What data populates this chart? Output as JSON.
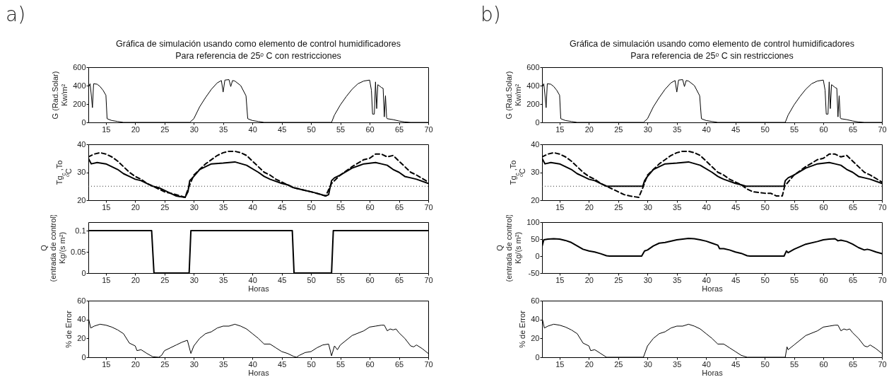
{
  "chart_data": [
    {
      "type": "line",
      "annotations": [
        "a)"
      ],
      "title": "Gráfica de simulación usando como elemento de control humidificadores",
      "subtitle": "Para referencia de 25ᵒ C con restricciones",
      "ylabel": "G (Rad.Solar)\nKw/m²",
      "xlim": [
        12,
        70
      ],
      "xticks": [
        15,
        20,
        25,
        30,
        35,
        40,
        45,
        50,
        55,
        60,
        65,
        70
      ],
      "ylim": [
        0,
        600
      ],
      "yticks": [
        0,
        200,
        400,
        600
      ],
      "series": [
        {
          "color": "#000000",
          "line_style": "solid",
          "x": [
            12,
            12.3,
            12.5,
            12.7,
            12.9,
            13.5,
            14,
            14.5,
            15,
            15.2,
            16,
            17,
            18,
            29.3,
            30,
            31,
            32,
            33,
            34,
            34.7,
            35,
            35.3,
            36,
            36.3,
            36.6,
            37,
            38,
            38.9,
            39.2,
            40,
            41,
            42,
            53.5,
            54,
            55,
            56,
            57,
            58,
            59,
            60,
            60.3,
            60.5,
            60.8,
            61,
            61.2,
            61.4,
            62,
            62.3,
            62.5,
            62.7,
            62.9,
            63,
            64,
            65,
            66,
            67,
            70
          ],
          "values": [
            380,
            420,
            300,
            160,
            420,
            415,
            390,
            350,
            295,
            40,
            20,
            10,
            0,
            0,
            40,
            170,
            270,
            360,
            430,
            455,
            330,
            460,
            465,
            390,
            455,
            450,
            400,
            290,
            40,
            20,
            10,
            0,
            0,
            80,
            190,
            280,
            360,
            420,
            450,
            460,
            350,
            90,
            90,
            440,
            150,
            410,
            380,
            370,
            60,
            290,
            50,
            40,
            30,
            15,
            5,
            0,
            0
          ]
        }
      ]
    },
    {
      "type": "line",
      "ylabel": "Tg$_{c}$ ,To\nᵒC",
      "xlim": [
        12,
        70
      ],
      "xticks": [
        15,
        20,
        25,
        30,
        35,
        40,
        45,
        50,
        55,
        60,
        65,
        70
      ],
      "ylim": [
        20,
        40
      ],
      "yticks": [
        20,
        30,
        40
      ],
      "ref_lines": [
        {
          "axis": "y",
          "value": 25,
          "line_style": "dotted",
          "color": "#333333"
        }
      ],
      "series": [
        {
          "color": "#000000",
          "line_style": "solid",
          "x": [
            12,
            12.5,
            13.5,
            15,
            16,
            17,
            18,
            19,
            20,
            21,
            22,
            23,
            24,
            25,
            26,
            27,
            28.5,
            29,
            29.3,
            30,
            31,
            33,
            35,
            37,
            39,
            41,
            42,
            43,
            45,
            46,
            47,
            48,
            49,
            50,
            51,
            52.5,
            53,
            53.5,
            54,
            55,
            57,
            59,
            61,
            62,
            63,
            64,
            65,
            66,
            67,
            68,
            70
          ],
          "values": [
            35,
            33,
            33.5,
            33,
            32,
            31,
            29.5,
            28.5,
            27.5,
            27,
            26,
            25,
            24.5,
            23.5,
            22.5,
            21.5,
            21,
            23,
            27,
            28.5,
            31,
            33,
            33.3,
            33.7,
            32.5,
            30,
            28.5,
            27.5,
            26,
            25.5,
            24.5,
            24,
            23.5,
            23,
            22.5,
            21.5,
            22,
            27,
            28,
            29,
            31.5,
            33,
            33.5,
            33,
            32.5,
            31,
            30,
            28.5,
            28,
            27.5,
            26
          ]
        },
        {
          "color": "#000000",
          "line_style": "dashed",
          "x": [
            12,
            13,
            14,
            15,
            16,
            17,
            18,
            19,
            20,
            21,
            22,
            23,
            24,
            25,
            26,
            27,
            28.5,
            29.2,
            30,
            31,
            32,
            34,
            35,
            36,
            37,
            38,
            39,
            40,
            41,
            42,
            43,
            44,
            45,
            46,
            47,
            48,
            50,
            52.5,
            53.5,
            55,
            57,
            59,
            60,
            61,
            62,
            63,
            64,
            65,
            66,
            67,
            68,
            70
          ],
          "values": [
            35.5,
            36.5,
            37,
            36.5,
            35.5,
            34,
            32,
            30,
            28.5,
            27.5,
            26,
            25,
            24,
            23,
            22.5,
            22,
            21,
            25,
            29,
            31,
            33,
            36,
            37,
            37.5,
            37.5,
            37,
            36,
            34,
            32,
            30,
            29,
            27.5,
            26.5,
            25.5,
            24.5,
            24,
            23,
            21.5,
            26,
            29,
            32,
            34.5,
            35,
            36.5,
            36.5,
            35.5,
            36,
            34,
            32,
            30,
            29,
            26.5
          ]
        }
      ]
    },
    {
      "type": "line",
      "ylabel": "Q\n(entrada de control)\nKg/(s m²)",
      "xlabel": "Horas",
      "xlim": [
        12,
        70
      ],
      "xticks": [
        15,
        20,
        25,
        30,
        35,
        40,
        45,
        50,
        55,
        60,
        65,
        70
      ],
      "ylim": [
        0,
        0.12
      ],
      "yticks": [
        0,
        0.05,
        0.1
      ],
      "series": [
        {
          "color": "#000000",
          "line_style": "solid",
          "x": [
            12,
            22.8,
            23.2,
            29.2,
            29.5,
            46.8,
            47.1,
            53.5,
            53.8,
            70
          ],
          "values": [
            0.1,
            0.1,
            0,
            0,
            0.1,
            0.1,
            0,
            0,
            0.1,
            0.1
          ]
        }
      ]
    },
    {
      "type": "line",
      "ylabel": "% de Error",
      "xlabel": "Horas",
      "xlim": [
        12,
        70
      ],
      "xticks": [
        15,
        20,
        25,
        30,
        35,
        40,
        45,
        50,
        55,
        60,
        65,
        70
      ],
      "ylim": [
        0,
        60
      ],
      "yticks": [
        0,
        20,
        40,
        60
      ],
      "series": [
        {
          "color": "#000000",
          "line_style": "solid",
          "x": [
            12,
            12.4,
            13,
            14,
            15,
            16,
            17,
            18,
            19,
            20,
            20.3,
            21,
            22,
            23,
            24,
            24.5,
            25,
            26,
            27,
            28,
            28.9,
            29.5,
            30,
            31,
            32,
            33,
            34,
            35,
            36,
            37,
            38,
            39,
            40,
            41,
            42,
            43,
            44,
            45,
            46,
            47,
            47.5,
            48,
            49,
            50,
            51,
            52,
            53,
            53.5,
            54,
            54.5,
            55,
            57,
            59,
            60,
            61,
            62,
            62.5,
            63,
            63.5,
            64,
            64.5,
            65,
            66,
            67,
            67.5,
            68,
            69,
            70
          ],
          "values": [
            42,
            31,
            33,
            35,
            34,
            32,
            29,
            25,
            15,
            12,
            7,
            8,
            4,
            0.5,
            0,
            2,
            7,
            10,
            13,
            16,
            18,
            4,
            12,
            20,
            25,
            27,
            31,
            33,
            33,
            35,
            33,
            30,
            25,
            20,
            14,
            14,
            10,
            6,
            4,
            1,
            0,
            2,
            5,
            6,
            10,
            13,
            14,
            1.5,
            12,
            8,
            13,
            23,
            28,
            32,
            33,
            34,
            34,
            28,
            30,
            29,
            30,
            26,
            20,
            12,
            11,
            13,
            9,
            4
          ]
        }
      ]
    },
    {
      "type": "line",
      "annotations": [
        "b)"
      ],
      "title": "Gráfica de simulación usando como elemento de control humidificadores",
      "subtitle": "Para referencia de 25ᵒ C sin restricciones",
      "ylabel": "G (Rad.Solar)\nKw/m²",
      "xlim": [
        12,
        70
      ],
      "xticks": [
        15,
        20,
        25,
        30,
        35,
        40,
        45,
        50,
        55,
        60,
        65,
        70
      ],
      "ylim": [
        0,
        600
      ],
      "yticks": [
        0,
        200,
        400,
        600
      ],
      "series": [
        {
          "color": "#000000",
          "line_style": "solid",
          "x": [
            12,
            12.3,
            12.5,
            12.7,
            12.9,
            13.5,
            14,
            14.5,
            15,
            15.2,
            16,
            17,
            18,
            29.3,
            30,
            31,
            32,
            33,
            34,
            34.7,
            35,
            35.3,
            36,
            36.3,
            36.6,
            37,
            38,
            38.9,
            39.2,
            40,
            41,
            42,
            53.5,
            54,
            55,
            56,
            57,
            58,
            59,
            60,
            60.3,
            60.5,
            60.8,
            61,
            61.2,
            61.4,
            62,
            62.3,
            62.5,
            62.7,
            62.9,
            63,
            64,
            65,
            66,
            67,
            70
          ],
          "values": [
            380,
            420,
            300,
            160,
            420,
            415,
            390,
            350,
            295,
            40,
            20,
            10,
            0,
            0,
            40,
            170,
            270,
            360,
            430,
            455,
            330,
            460,
            465,
            390,
            455,
            450,
            400,
            290,
            40,
            20,
            10,
            0,
            0,
            80,
            190,
            280,
            360,
            420,
            450,
            460,
            350,
            90,
            90,
            440,
            150,
            410,
            380,
            370,
            60,
            290,
            50,
            40,
            30,
            15,
            5,
            0,
            0
          ]
        }
      ]
    },
    {
      "type": "line",
      "ylabel": "Tg$_{c}$ ,To\nᵒC",
      "xlim": [
        12,
        70
      ],
      "xticks": [
        15,
        20,
        25,
        30,
        35,
        40,
        45,
        50,
        55,
        60,
        65,
        70
      ],
      "ylim": [
        20,
        40
      ],
      "yticks": [
        20,
        30,
        40
      ],
      "ref_lines": [
        {
          "axis": "y",
          "value": 25,
          "line_style": "dotted",
          "color": "#333333"
        }
      ],
      "series": [
        {
          "color": "#000000",
          "line_style": "solid",
          "x": [
            12,
            12.5,
            13.5,
            15,
            16,
            17,
            18,
            19,
            20,
            21,
            22,
            23,
            29.2,
            29.5,
            30,
            31,
            33,
            35,
            37,
            39,
            41,
            42,
            43,
            45,
            46,
            46.8,
            53.3,
            53.5,
            54,
            55,
            57,
            59,
            61,
            62,
            63,
            64,
            65,
            66,
            67,
            68,
            70
          ],
          "values": [
            35,
            33,
            33.5,
            33,
            32,
            31,
            29.5,
            28.5,
            27.5,
            27,
            26,
            25,
            25,
            27,
            28.5,
            31,
            33,
            33.3,
            33.7,
            32.5,
            30,
            28.5,
            27.5,
            26,
            25.5,
            25,
            25,
            27,
            28,
            29,
            31.5,
            33,
            33.5,
            33,
            32.5,
            31,
            30,
            28.5,
            28,
            27.5,
            26
          ]
        },
        {
          "color": "#000000",
          "line_style": "dashed",
          "x": [
            12,
            13,
            14,
            15,
            16,
            17,
            18,
            19,
            20,
            21,
            22,
            23,
            24,
            25,
            26,
            27,
            28.5,
            29.3,
            30,
            31,
            32,
            34,
            35,
            36,
            37,
            38,
            39,
            40,
            41,
            42,
            43,
            44,
            45,
            46,
            47,
            48,
            50,
            51,
            52,
            53,
            53.4,
            55,
            57,
            59,
            60,
            61,
            62,
            63,
            64,
            65,
            66,
            67,
            68,
            70
          ],
          "values": [
            35.5,
            36.5,
            37,
            36.5,
            35.5,
            34,
            32,
            30,
            28.5,
            27.5,
            26,
            25,
            24,
            23,
            22,
            21.5,
            21,
            25,
            29,
            31,
            33,
            36,
            37,
            37.5,
            37.5,
            37,
            36,
            34,
            32,
            30,
            29,
            27.5,
            26.5,
            25.5,
            24,
            23,
            22.5,
            22.5,
            21.5,
            21.5,
            25,
            29,
            32,
            34.5,
            35,
            36.5,
            36.5,
            35.5,
            36,
            34,
            32,
            30,
            29,
            26.5
          ]
        }
      ]
    },
    {
      "type": "line",
      "ylabel": "Q\n(entrada de control)\nKg/(s m²)",
      "xlabel": "Horas",
      "xlim": [
        12,
        70
      ],
      "xticks": [
        15,
        20,
        25,
        30,
        35,
        40,
        45,
        50,
        55,
        60,
        65,
        70
      ],
      "ylim": [
        -50,
        100
      ],
      "yticks": [
        -50,
        0,
        50,
        100
      ],
      "series": [
        {
          "color": "#000000",
          "line_style": "solid",
          "x": [
            12,
            12.3,
            13,
            14,
            15,
            16,
            17,
            18,
            19,
            20,
            21,
            22,
            23,
            23.5,
            29,
            29.5,
            30,
            31,
            32,
            33,
            35,
            37,
            38,
            39,
            40,
            41,
            42,
            42.3,
            43,
            44,
            45,
            46,
            47,
            47.5,
            53.3,
            53.7,
            54,
            55,
            57,
            59,
            60,
            61,
            62,
            62.5,
            63,
            64,
            65,
            66,
            67,
            67.5,
            68,
            69,
            70
          ],
          "values": [
            28,
            48,
            50,
            51,
            50,
            46,
            40,
            30,
            20,
            15,
            12,
            7,
            1,
            0,
            0,
            15,
            18,
            30,
            38,
            40,
            48,
            52,
            51,
            48,
            44,
            38,
            32,
            22,
            22,
            18,
            12,
            8,
            1,
            0,
            0,
            15,
            10,
            20,
            35,
            43,
            48,
            50,
            51,
            45,
            47,
            43,
            35,
            25,
            18,
            20,
            18,
            12,
            7
          ]
        }
      ]
    },
    {
      "type": "line",
      "ylabel": "% de Error",
      "xlabel": "Horas",
      "xlim": [
        12,
        70
      ],
      "xticks": [
        15,
        20,
        25,
        30,
        35,
        40,
        45,
        50,
        55,
        60,
        65,
        70
      ],
      "ylim": [
        0,
        60
      ],
      "yticks": [
        0,
        20,
        40,
        60
      ],
      "series": [
        {
          "color": "#000000",
          "line_style": "solid",
          "x": [
            12,
            12.4,
            13,
            14,
            15,
            16,
            17,
            18,
            19,
            20,
            20.3,
            21,
            22,
            23,
            29.3,
            30,
            31,
            32,
            33,
            34,
            35,
            36,
            37,
            38,
            39,
            40,
            41,
            42,
            43,
            44,
            45,
            46,
            47,
            53.5,
            53.8,
            54,
            55,
            57,
            59,
            60,
            61,
            62,
            62.5,
            63,
            63.5,
            64,
            64.5,
            65,
            66,
            67,
            67.5,
            68,
            69,
            70
          ],
          "values": [
            42,
            31,
            33,
            35,
            34,
            32,
            29,
            25,
            15,
            12,
            7,
            8,
            4,
            0,
            0,
            12,
            20,
            25,
            27,
            31,
            33,
            33,
            35,
            33,
            30,
            25,
            20,
            14,
            14,
            10,
            6,
            2,
            0,
            0,
            11,
            8,
            13,
            23,
            28,
            32,
            33,
            34,
            34,
            28,
            30,
            29,
            30,
            26,
            20,
            12,
            11,
            13,
            9,
            4
          ]
        }
      ]
    }
  ]
}
